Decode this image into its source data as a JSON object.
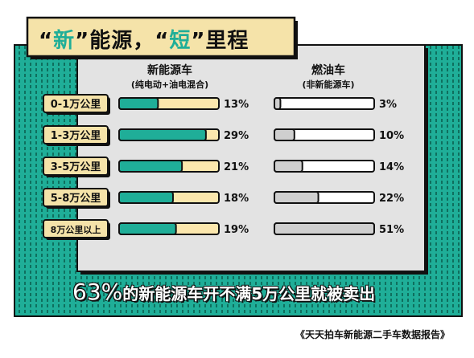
{
  "title": {
    "q1_open": "“",
    "word1": "新",
    "q1_close": "”",
    "mid": "能源，",
    "q2_open": "“",
    "word2": "短",
    "q2_close": "”",
    "end": "里程"
  },
  "footer": {
    "pct": "63%",
    "text": "的新能源车开不满5万公里就被卖出"
  },
  "source": "《天天拍车新能源二手车数据报告》",
  "colors": {
    "green": "#1fae98",
    "cream": "#fbe7ad",
    "panel": "#e3e3e3",
    "grey_fill": "#cfcfcf",
    "ink": "#111111",
    "title_bg": "#f5e3a9",
    "dots": "#0f6f5e"
  },
  "chart_data": {
    "type": "bar",
    "categories": [
      "0-1万公里",
      "1-3万公里",
      "3-5万公里",
      "5-8万公里",
      "8万公里以上"
    ],
    "series": [
      {
        "name": "新能源车",
        "subtitle": "(纯电动+油电混合)",
        "values": [
          13,
          29,
          21,
          18,
          19
        ],
        "labels": [
          "13%",
          "29%",
          "21%",
          "18%",
          "19%"
        ]
      },
      {
        "name": "燃油车",
        "subtitle": "(非新能源车)",
        "values": [
          3,
          10,
          14,
          22,
          51
        ],
        "labels": [
          "3%",
          "10%",
          "14%",
          "22%",
          "51%"
        ]
      }
    ],
    "value_unit": "%",
    "ylim": [
      0,
      100
    ],
    "legend": "column headers above bars"
  }
}
